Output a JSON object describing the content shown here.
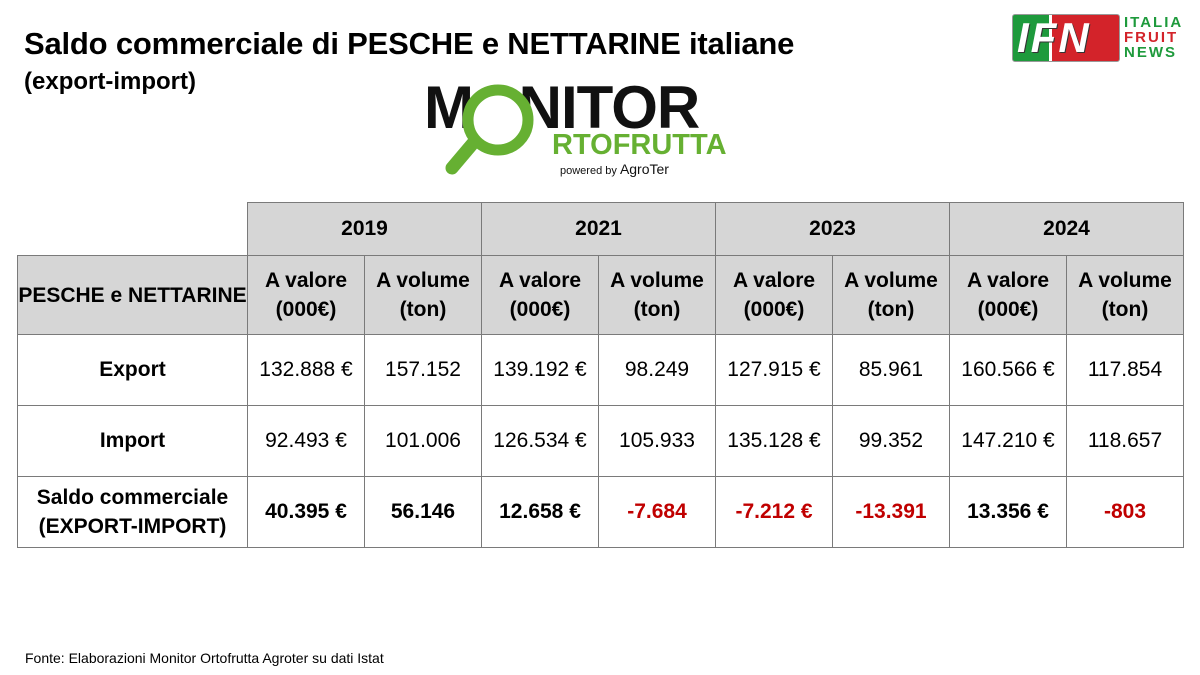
{
  "header": {
    "title": "Saldo commerciale di PESCHE e NETTARINE italiane",
    "subtitle": "(export-import)"
  },
  "logos": {
    "ifn_letters": "IFN",
    "ifn_words": [
      "ITALIA",
      "FRUIT",
      "NEWS"
    ],
    "monitor_word": "MONITOR",
    "monitor_sub": "RTOFRUTTA",
    "powered_by": "powered by",
    "powered_brand": "AgroTer",
    "colors": {
      "green": "#66b032",
      "red": "#d3232a",
      "ifn_green": "#1e9a3c"
    }
  },
  "chart_data": {
    "type": "table",
    "row_header": "PESCHE e NETTARINE",
    "years": [
      "2019",
      "2021",
      "2023",
      "2024"
    ],
    "sub_columns": [
      "A valore (000€)",
      "A volume (ton)"
    ],
    "rows": [
      {
        "label": "Export",
        "cells": [
          "132.888 €",
          "157.152",
          "139.192 €",
          "98.249",
          "127.915 €",
          "85.961",
          "160.566 €",
          "117.854"
        ],
        "negative": [
          false,
          false,
          false,
          false,
          false,
          false,
          false,
          false
        ]
      },
      {
        "label": "Import",
        "cells": [
          "92.493 €",
          "101.006",
          "126.534 €",
          "105.933",
          "135.128 €",
          "99.352",
          "147.210 €",
          "118.657"
        ],
        "negative": [
          false,
          false,
          false,
          false,
          false,
          false,
          false,
          false
        ]
      },
      {
        "label": "Saldo commerciale (EXPORT-IMPORT)",
        "cells": [
          "40.395 €",
          "56.146",
          "12.658 €",
          "-7.684",
          "-7.212 €",
          "-13.391",
          "13.356 €",
          "-803"
        ],
        "negative": [
          false,
          false,
          false,
          true,
          true,
          true,
          false,
          true
        ],
        "bold": true
      }
    ],
    "colors": {
      "header_bg": "#d6d6d6",
      "negative": "#c00000"
    }
  },
  "footer": {
    "source": "Fonte: Elaborazioni Monitor Ortofrutta Agroter su dati Istat"
  }
}
